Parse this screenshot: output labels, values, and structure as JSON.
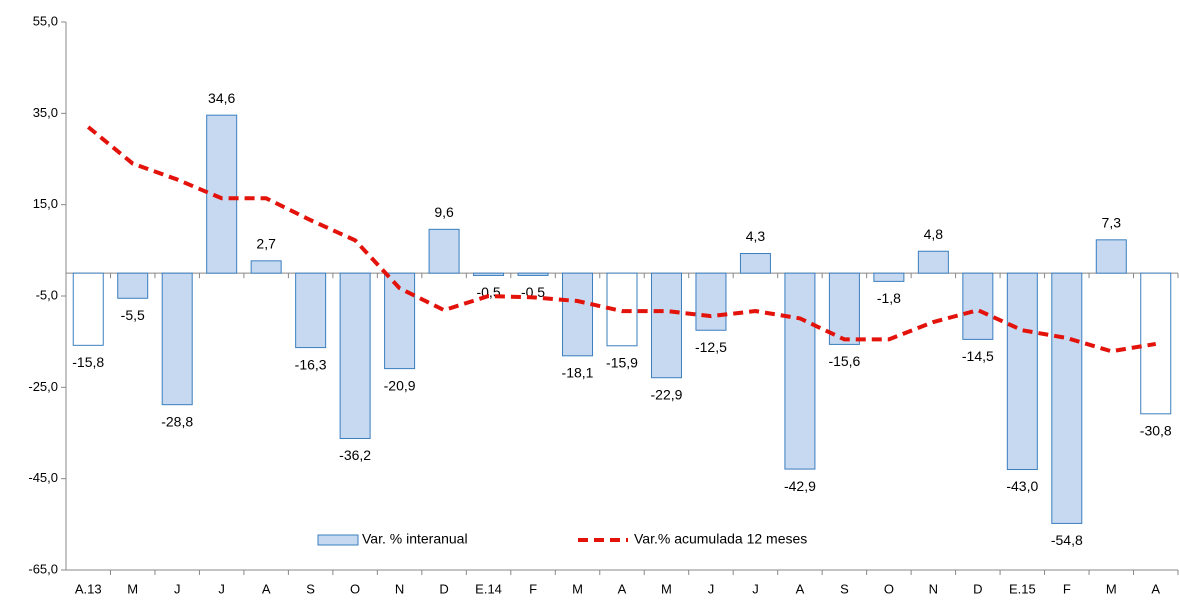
{
  "chart_data": {
    "type": "bar",
    "categories": [
      "A.13",
      "M",
      "J",
      "J",
      "A",
      "S",
      "O",
      "N",
      "D",
      "E.14",
      "F",
      "M",
      "A",
      "M",
      "J",
      "J",
      "A",
      "S",
      "O",
      "N",
      "D",
      "E.15",
      "F",
      "M",
      "A"
    ],
    "series": [
      {
        "name": "Var. % interanual",
        "type": "bar",
        "color": "#c6d9f0",
        "stroke": "#3a7ebf",
        "colors": [
          "#ffffff",
          "#c6d9f0",
          "#c6d9f0",
          "#c6d9f0",
          "#c6d9f0",
          "#c6d9f0",
          "#c6d9f0",
          "#c6d9f0",
          "#c6d9f0",
          "#c6d9f0",
          "#c6d9f0",
          "#c6d9f0",
          "#ffffff",
          "#c6d9f0",
          "#c6d9f0",
          "#c6d9f0",
          "#c6d9f0",
          "#c6d9f0",
          "#c6d9f0",
          "#c6d9f0",
          "#c6d9f0",
          "#c6d9f0",
          "#c6d9f0",
          "#c6d9f0",
          "#ffffff"
        ],
        "values": [
          -15.8,
          -5.5,
          -28.8,
          34.6,
          2.7,
          -16.3,
          -36.2,
          -20.9,
          9.6,
          -0.5,
          -0.5,
          -18.1,
          -15.9,
          -22.9,
          -12.5,
          4.3,
          -42.9,
          -15.6,
          -1.8,
          4.8,
          -14.5,
          -43.0,
          -54.8,
          7.3,
          -30.8
        ],
        "value_labels": [
          "-15,8",
          "-5,5",
          "-28,8",
          "34,6",
          "2,7",
          "-16,3",
          "-36,2",
          "-20,9",
          "9,6",
          "-0,5",
          "-0,5",
          "-18,1",
          "-15,9",
          "-22,9",
          "-12,5",
          "4,3",
          "-42,9",
          "-15,6",
          "-1,8",
          "4,8",
          "-14,5",
          "-43,0",
          "-54,8",
          "7,3",
          "-30,8"
        ]
      },
      {
        "name": "Var.% acumulada 12 meses",
        "type": "line",
        "color": "#e3120b",
        "dashed": true,
        "values": [
          32,
          24,
          20.5,
          16.4,
          16.4,
          11.6,
          7.2,
          -3.3,
          -8.1,
          -5,
          -5.3,
          -6.1,
          -8.3,
          -8.3,
          -9.4,
          -8.3,
          -9.9,
          -14.5,
          -14.5,
          -10.7,
          -8.1,
          -12.5,
          -14.2,
          -17.1,
          -15.5
        ]
      }
    ],
    "ylim": [
      -65,
      55
    ],
    "yticks": [
      {
        "value": -65,
        "label": "-65,0"
      },
      {
        "value": -45,
        "label": "-45,0"
      },
      {
        "value": -25,
        "label": "-25,0"
      },
      {
        "value": -5,
        "label": "-5,0"
      },
      {
        "value": 15,
        "label": "15,0"
      },
      {
        "value": 35,
        "label": "35,0"
      },
      {
        "value": 55,
        "label": "55,0"
      }
    ],
    "grid": false,
    "legend": "bottom"
  }
}
